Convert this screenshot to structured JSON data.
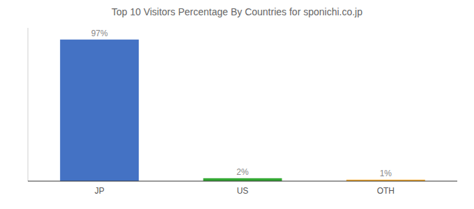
{
  "chart_data": {
    "type": "bar",
    "title": "Top 10 Visitors Percentage By Countries for sponichi.co.jp",
    "categories": [
      "JP",
      "US",
      "OTH"
    ],
    "values": [
      97,
      2,
      1
    ],
    "value_labels": [
      "97%",
      "2%",
      "1%"
    ],
    "colors": [
      "#4472c4",
      "#33a833",
      "#f0a830"
    ],
    "ylim": [
      0,
      105
    ],
    "data_labels": true,
    "tick_labels": "x",
    "grid": false
  }
}
